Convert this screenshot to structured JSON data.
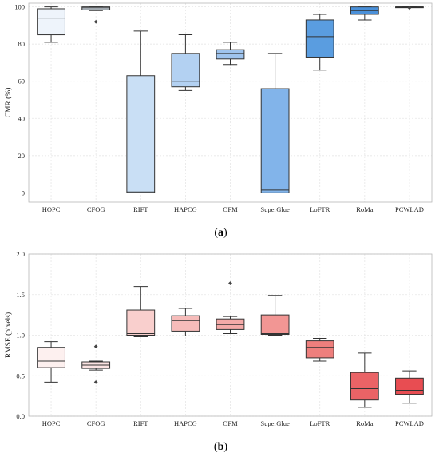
{
  "chart_data": [
    {
      "type": "box",
      "panel_label": "(a)",
      "ylabel": "CMR (%)",
      "ylim": [
        -5,
        102
      ],
      "yticks": [
        "0",
        "20",
        "40",
        "60",
        "80",
        "100"
      ],
      "categories": [
        "HOPC",
        "CFOG",
        "RIFT",
        "HAPCG",
        "OFM",
        "SuperGlue",
        "LoFTR",
        "RoMa",
        "PCWLAD"
      ],
      "grid": true,
      "boxes": [
        {
          "min": 81,
          "q1": 85,
          "median": 94,
          "q3": 99,
          "max": 100,
          "outliers": []
        },
        {
          "min": 98,
          "q1": 98.5,
          "median": 99.5,
          "q3": 100,
          "max": 100,
          "outliers": [
            92
          ]
        },
        {
          "min": 0,
          "q1": 0,
          "median": 0.5,
          "q3": 63,
          "max": 87,
          "outliers": []
        },
        {
          "min": 55,
          "q1": 57,
          "median": 60,
          "q3": 75,
          "max": 85,
          "outliers": []
        },
        {
          "min": 69,
          "q1": 72,
          "median": 75,
          "q3": 77,
          "max": 81,
          "outliers": []
        },
        {
          "min": 0,
          "q1": 0,
          "median": 1.5,
          "q3": 56,
          "max": 75,
          "outliers": []
        },
        {
          "min": 66,
          "q1": 73,
          "median": 84,
          "q3": 93,
          "max": 96,
          "outliers": []
        },
        {
          "min": 93,
          "q1": 96,
          "median": 98,
          "q3": 100,
          "max": 100,
          "outliers": []
        },
        {
          "min": 100,
          "q1": 100,
          "median": 100,
          "q3": 100,
          "max": 100,
          "outliers": [
            99.5
          ]
        }
      ],
      "colors": [
        "#eef4fb",
        "#e3eef9",
        "#c9dff5",
        "#b3d1f2",
        "#9fc4ee",
        "#82b4ea",
        "#5a9de0",
        "#4a90d9",
        "#3b84d2"
      ]
    },
    {
      "type": "box",
      "panel_label": "(b)",
      "ylabel": "RMSE (pixels)",
      "ylim": [
        0,
        2.0
      ],
      "yticks": [
        "0.0",
        "0.5",
        "1.0",
        "1.5",
        "2.0"
      ],
      "categories": [
        "HOPC",
        "CFOG",
        "RIFT",
        "HAPCG",
        "OFM",
        "SuperGlue",
        "LoFTR",
        "RoMa",
        "PCWLAD"
      ],
      "grid": true,
      "boxes": [
        {
          "min": 0.42,
          "q1": 0.6,
          "median": 0.68,
          "q3": 0.85,
          "max": 0.92,
          "outliers": []
        },
        {
          "min": 0.57,
          "q1": 0.59,
          "median": 0.63,
          "q3": 0.67,
          "max": 0.68,
          "outliers": [
            0.86,
            0.42
          ]
        },
        {
          "min": 0.98,
          "q1": 1.0,
          "median": 1.02,
          "q3": 1.31,
          "max": 1.6,
          "outliers": []
        },
        {
          "min": 0.99,
          "q1": 1.05,
          "median": 1.18,
          "q3": 1.24,
          "max": 1.33,
          "outliers": []
        },
        {
          "min": 1.02,
          "q1": 1.07,
          "median": 1.13,
          "q3": 1.2,
          "max": 1.23,
          "outliers": [
            1.64
          ]
        },
        {
          "min": 1.0,
          "q1": 1.01,
          "median": 1.02,
          "q3": 1.25,
          "max": 1.49,
          "outliers": []
        },
        {
          "min": 0.68,
          "q1": 0.72,
          "median": 0.85,
          "q3": 0.93,
          "max": 0.96,
          "outliers": []
        },
        {
          "min": 0.11,
          "q1": 0.2,
          "median": 0.34,
          "q3": 0.54,
          "max": 0.78,
          "outliers": []
        },
        {
          "min": 0.16,
          "q1": 0.27,
          "median": 0.32,
          "q3": 0.47,
          "max": 0.56,
          "outliers": []
        }
      ],
      "colors": [
        "#fdf0ef",
        "#fbe3e2",
        "#f9cfcd",
        "#f6bcba",
        "#f4aaa8",
        "#f29694",
        "#ee7f7d",
        "#ea6366",
        "#e84d52"
      ]
    }
  ]
}
